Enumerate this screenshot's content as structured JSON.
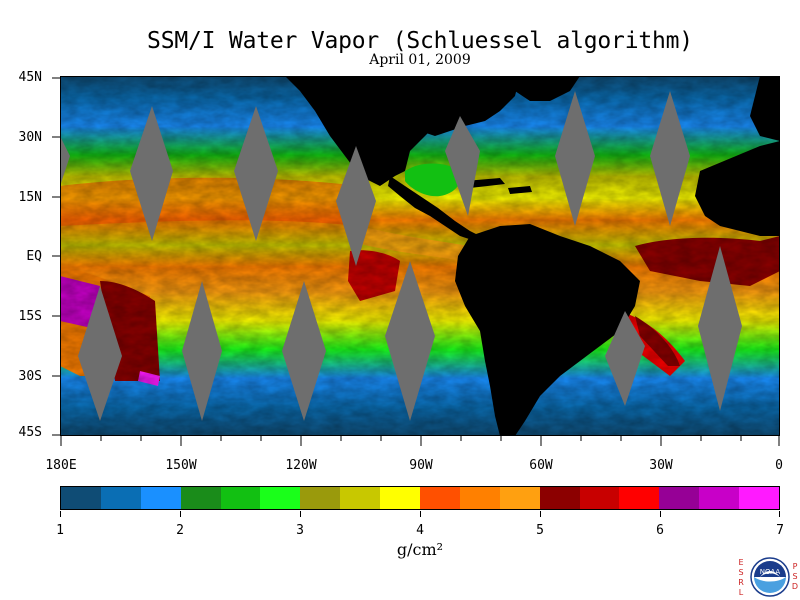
{
  "title": "SSM/I Water Vapor (Schluessel algorithm)",
  "subtitle": "April 01, 2009",
  "map": {
    "lat_labels": [
      "45N",
      "30N",
      "15N",
      "EQ",
      "15S",
      "30S",
      "45S"
    ],
    "lon_labels": [
      "180E",
      "150W",
      "120W",
      "90W",
      "60W",
      "30W",
      "0"
    ]
  },
  "colorbar": {
    "colors": [
      "#0f4c75",
      "#0a6eb4",
      "#1a90ff",
      "#1a8c1a",
      "#12c012",
      "#1aff1a",
      "#9a9a0c",
      "#c8c800",
      "#ffff00",
      "#ff5000",
      "#ff8000",
      "#ffa010",
      "#8c0000",
      "#c80000",
      "#ff0000",
      "#960096",
      "#c800c8",
      "#ff1aff"
    ],
    "tick_labels": [
      "1",
      "2",
      "3",
      "4",
      "5",
      "6",
      "7"
    ],
    "units": "g/cm²"
  },
  "logo": {
    "left_letters": [
      "E",
      "S",
      "R",
      "L"
    ],
    "right_letters": [
      "P",
      "S",
      "D"
    ],
    "emblem_text": "NOAA"
  }
}
